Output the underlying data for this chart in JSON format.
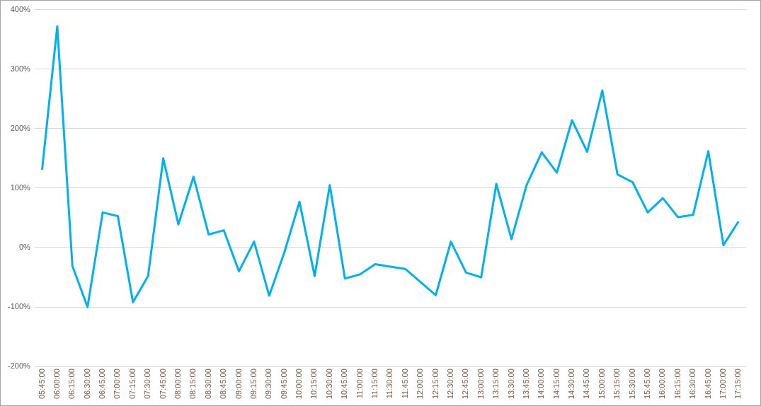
{
  "chart_data": {
    "type": "line",
    "categories": [
      "05:45:00",
      "06:00:00",
      "06:15:00",
      "06:30:00",
      "06:45:00",
      "07:00:00",
      "07:15:00",
      "07:30:00",
      "07:45:00",
      "08:00:00",
      "08:15:00",
      "08:30:00",
      "08:45:00",
      "09:00:00",
      "09:15:00",
      "09:30:00",
      "09:45:00",
      "10:00:00",
      "10:15:00",
      "10:30:00",
      "10:45:00",
      "11:00:00",
      "11:15:00",
      "11:30:00",
      "11:45:00",
      "12:00:00",
      "12:15:00",
      "12:30:00",
      "12:45:00",
      "13:00:00",
      "13:15:00",
      "13:30:00",
      "13:45:00",
      "14:00:00",
      "14:15:00",
      "14:30:00",
      "14:45:00",
      "15:00:00",
      "15:15:00",
      "15:30:00",
      "15:45:00",
      "16:00:00",
      "16:15:00",
      "16:30:00",
      "16:45:00",
      "17:00:00",
      "17:15:00"
    ],
    "series": [
      {
        "color": "#00b0f0",
        "values": [
          131,
          372,
          -31,
          -100,
          59,
          53,
          -92,
          -48,
          150,
          39,
          119,
          22,
          29,
          -40,
          10,
          -81,
          -8,
          77,
          -48,
          105,
          -52,
          -45,
          -28,
          -32,
          -36,
          -58,
          -80,
          10,
          -42,
          -50,
          107,
          14,
          105,
          160,
          126,
          214,
          161,
          264,
          123,
          110,
          59,
          83,
          51,
          55,
          162,
          4,
          44
        ]
      }
    ],
    "ylim": [
      -200,
      400
    ],
    "yticks": [
      {
        "value": -200,
        "label": "-200%"
      },
      {
        "value": -100,
        "label": "-100%"
      },
      {
        "value": 0,
        "label": "0%"
      },
      {
        "value": 100,
        "label": "100%"
      },
      {
        "value": 200,
        "label": "200%"
      },
      {
        "value": 300,
        "label": "300%"
      },
      {
        "value": 400,
        "label": "400%"
      }
    ],
    "grid": "y",
    "legend": false,
    "marker": "none",
    "line_style": "solid"
  }
}
